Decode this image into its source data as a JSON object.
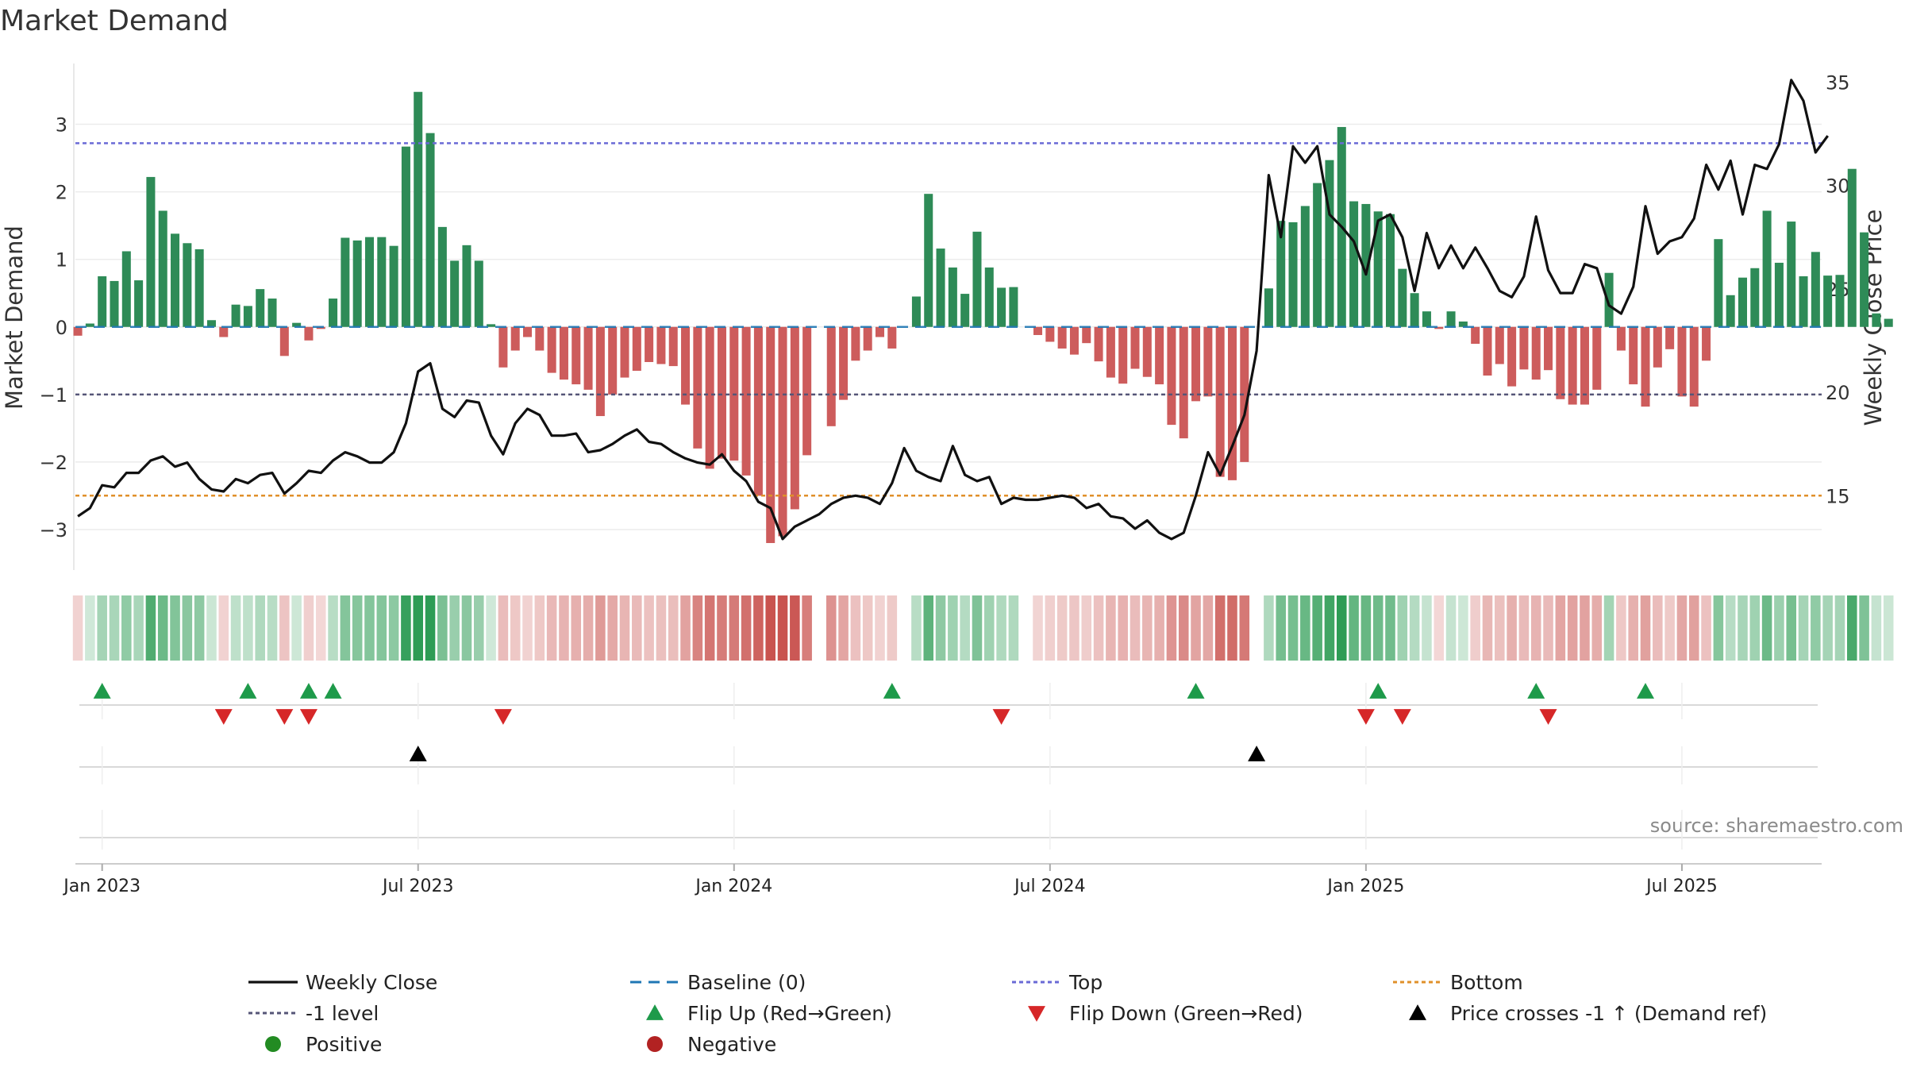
{
  "chart_data": {
    "type": "bar",
    "title": "Market Demand",
    "ylabel": "Market Demand",
    "y2label": "Weekly Close Price",
    "ylim": [
      -3.6,
      3.9
    ],
    "y2lim": [
      11.4,
      35.9
    ],
    "y_ticks": [
      3,
      2,
      1,
      0,
      -1,
      -2,
      -3
    ],
    "y_tick_labels": [
      "3",
      "2",
      "1",
      "0",
      "−1",
      "−2",
      "−3"
    ],
    "y2_ticks": [
      35,
      30,
      25,
      20,
      15
    ],
    "y2_tick_labels": [
      "35",
      "30",
      "25",
      "20",
      "15"
    ],
    "x_ticks": [
      0,
      26,
      52,
      78,
      104,
      130
    ],
    "x_tick_labels": [
      "Jan 2023",
      "Jul 2023",
      "Jan 2024",
      "Jul 2024",
      "Jan 2025",
      "Jul 2025"
    ],
    "x_range": [
      -2.2,
      141.5
    ],
    "top_level": 2.72,
    "neg_level": -1,
    "bottom_price": 15,
    "baseline": 0,
    "colors": {
      "positive_bar": "#2e8b57",
      "negative_bar": "#cd5c5c",
      "price_line": "#111111",
      "baseline": "#1f77b4",
      "top": "#6a6ad6",
      "neg_level": "#555577",
      "bottom": "#e0902a",
      "flip_up": "#1e9a4a",
      "flip_down": "#d62728",
      "cross": "#000000",
      "positive_dot": "#228b22",
      "negative_dot": "#b22222",
      "heat_pos": "#2e9c55",
      "heat_neg": "#c9534f"
    },
    "series": [
      {
        "name": "Market Demand",
        "x_start": -2,
        "values": [
          -0.13,
          0.05,
          0.75,
          0.68,
          1.12,
          0.69,
          2.22,
          1.72,
          1.38,
          1.24,
          1.15,
          0.1,
          -0.15,
          0.33,
          0.31,
          0.56,
          0.42,
          -0.43,
          0.06,
          -0.2,
          -0.03,
          0.42,
          1.32,
          1.28,
          1.33,
          1.33,
          1.2,
          2.67,
          3.48,
          2.87,
          1.48,
          0.98,
          1.21,
          0.98,
          0.04,
          -0.6,
          -0.35,
          -0.15,
          -0.35,
          -0.68,
          -0.78,
          -0.85,
          -0.93,
          -1.32,
          -1.0,
          -0.75,
          -0.65,
          -0.52,
          -0.55,
          -0.58,
          -1.15,
          -1.8,
          -2.1,
          -1.95,
          -1.98,
          -2.2,
          -2.5,
          -3.2,
          -3.1,
          -2.7,
          -1.9,
          0.0,
          -1.47,
          -1.08,
          -0.5,
          -0.35,
          -0.15,
          -0.32,
          0.0,
          0.45,
          1.97,
          1.16,
          0.88,
          0.49,
          1.41,
          0.88,
          0.58,
          0.59,
          0.0,
          -0.12,
          -0.22,
          -0.32,
          -0.41,
          -0.24,
          -0.51,
          -0.75,
          -0.84,
          -0.62,
          -0.74,
          -0.85,
          -1.45,
          -1.65,
          -1.1,
          -1.03,
          -2.22,
          -2.27,
          -2.0,
          0.0,
          0.57,
          1.57,
          1.55,
          1.79,
          2.13,
          2.47,
          2.96,
          1.86,
          1.82,
          1.71,
          1.67,
          0.86,
          0.5,
          0.23,
          -0.03,
          0.23,
          0.08,
          -0.25,
          -0.72,
          -0.55,
          -0.88,
          -0.63,
          -0.78,
          -0.64,
          -1.07,
          -1.15,
          -1.15,
          -0.93,
          0.8,
          -0.35,
          -0.85,
          -1.18,
          -0.6,
          -0.33,
          -1.03,
          -1.18,
          -0.5,
          1.3,
          0.47,
          0.73,
          0.87,
          1.72,
          0.95,
          1.56,
          0.75,
          1.11,
          0.76,
          0.77,
          2.34,
          1.4,
          0.2,
          0.12
        ]
      },
      {
        "name": "Weekly Close",
        "x_start": -2,
        "values": [
          14.0,
          14.4,
          15.5,
          15.4,
          16.1,
          16.1,
          16.7,
          16.9,
          16.4,
          16.6,
          15.8,
          15.3,
          15.2,
          15.8,
          15.6,
          16.0,
          16.1,
          15.1,
          15.6,
          16.2,
          16.1,
          16.7,
          17.1,
          16.9,
          16.6,
          16.6,
          17.1,
          18.5,
          21.0,
          21.4,
          19.2,
          18.8,
          19.6,
          19.5,
          17.9,
          17.0,
          18.5,
          19.2,
          18.9,
          17.9,
          17.9,
          18.0,
          17.1,
          17.2,
          17.5,
          17.9,
          18.2,
          17.6,
          17.5,
          17.1,
          16.8,
          16.6,
          16.5,
          17.0,
          16.2,
          15.7,
          14.7,
          14.4,
          12.9,
          13.5,
          13.8,
          14.1,
          14.6,
          14.9,
          15.0,
          14.9,
          14.6,
          15.6,
          17.3,
          16.2,
          15.9,
          15.7,
          17.4,
          16.0,
          15.7,
          15.9,
          14.6,
          14.9,
          14.8,
          14.8,
          14.9,
          15.0,
          14.9,
          14.4,
          14.6,
          14.0,
          13.9,
          13.4,
          13.8,
          13.2,
          12.9,
          13.2,
          15.0,
          17.1,
          16.0,
          17.4,
          18.9,
          22.0,
          30.5,
          27.5,
          31.9,
          31.1,
          31.9,
          28.6,
          28.0,
          27.3,
          25.7,
          28.3,
          28.6,
          27.5,
          24.9,
          27.7,
          26.0,
          27.1,
          26.0,
          27.0,
          26.0,
          24.9,
          24.6,
          25.6,
          28.5,
          25.9,
          24.8,
          24.8,
          26.2,
          26.0,
          24.2,
          23.8,
          25.1,
          29.0,
          26.7,
          27.3,
          27.5,
          28.4,
          31.0,
          29.8,
          31.2,
          28.6,
          31.0,
          30.8,
          32.0,
          35.1,
          34.1,
          31.6,
          32.4
        ]
      }
    ],
    "flip_up_weeks": [
      0,
      12,
      17,
      19,
      65,
      90,
      105,
      118,
      127
    ],
    "flip_down_weeks": [
      10,
      15,
      17,
      33,
      74,
      104,
      107,
      119
    ],
    "price_cross_weeks": [
      26,
      95
    ],
    "watermark": "source: sharemaestro.com",
    "legend": [
      {
        "label": "Weekly Close",
        "marker": "line",
        "color": "#111111"
      },
      {
        "label": "Baseline (0)",
        "marker": "dash",
        "color": "#1f77b4"
      },
      {
        "label": "Top",
        "marker": "dot-line",
        "color": "#6a6ad6"
      },
      {
        "label": "Bottom",
        "marker": "dot-line",
        "color": "#e0902a"
      },
      {
        "label": "-1 level",
        "marker": "dot-line",
        "color": "#555577"
      },
      {
        "label": "Flip Up (Red→Green)",
        "marker": "triangle-up",
        "color": "#1e9a4a"
      },
      {
        "label": "Flip Down (Green→Red)",
        "marker": "triangle-down",
        "color": "#d62728"
      },
      {
        "label": "Price crosses -1 ↑ (Demand ref)",
        "marker": "triangle-up",
        "color": "#000000"
      },
      {
        "label": "Positive",
        "marker": "circle",
        "color": "#228b22"
      },
      {
        "label": "Negative",
        "marker": "circle",
        "color": "#b22222"
      }
    ]
  }
}
